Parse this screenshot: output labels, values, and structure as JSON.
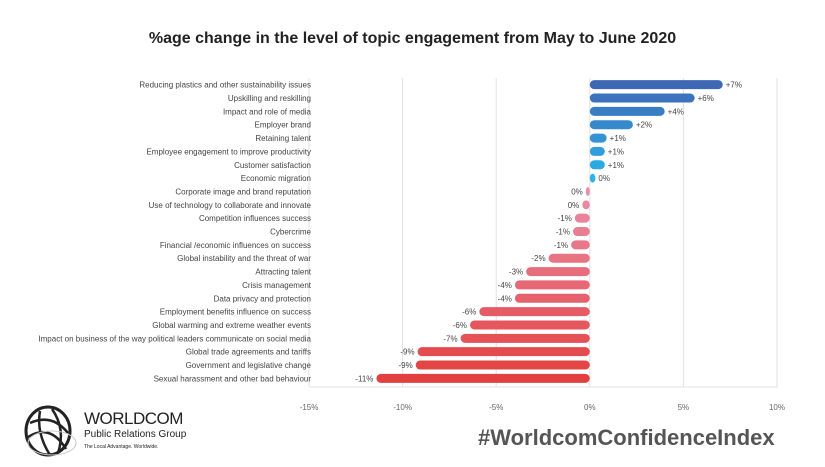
{
  "chart_data": {
    "type": "bar",
    "orientation": "horizontal",
    "title": "%age change in the level of topic engagement from May to June 2020",
    "xlim": [
      -15,
      10
    ],
    "xticks": [
      "-15%",
      "-10%",
      "-5%",
      "0%",
      "5%",
      "10%"
    ],
    "xtick_values": [
      -15,
      -10,
      -5,
      0,
      5,
      10
    ],
    "grid": "vertical",
    "categories": [
      "Reducing plastics and other sustainability issues",
      "Upskilling and reskilling",
      "Impact and role of media",
      "Employer brand",
      "Retaining talent",
      "Employee engagement to improve productivity",
      "Customer satisfaction",
      "Economic migration",
      "Corporate image and brand reputation",
      "Use of technology to collaborate and innovate",
      "Competition influences success",
      "Cybercrime",
      "Financial /economic influences on success",
      "Global instability and the threat of war",
      "Attracting talent",
      "Crisis management",
      "Data privacy and protection",
      "Employment benefits influence on success",
      "Global warming and extreme weather events",
      "Impact on business of the way political leaders communicate on social media",
      "Global trade agreements and tariffs",
      "Government and legislative change",
      "Sexual harassment and other bad behaviour"
    ],
    "values": [
      7.1,
      5.6,
      4.0,
      2.3,
      0.9,
      0.8,
      0.8,
      0.3,
      -0.2,
      -0.4,
      -0.8,
      -0.9,
      -1.0,
      -2.2,
      -3.4,
      -4.0,
      -4.0,
      -5.9,
      -6.4,
      -6.9,
      -9.2,
      -9.3,
      -11.4
    ],
    "labels": [
      "+7%",
      "+6%",
      "+4%",
      "+2%",
      "+1%",
      "+1%",
      "+1%",
      "0%",
      "0%",
      "0%",
      "-1%",
      "-1%",
      "-1%",
      "-2%",
      "-3%",
      "-4%",
      "-4%",
      "-6%",
      "-6%",
      "-7%",
      "-9%",
      "-9%",
      "-11%"
    ],
    "colors": {
      "positive_dark": "#3f68b4",
      "positive_light": "#2ab4ea",
      "negative_light": "#e98fa8",
      "negative_dark": "#e2403f"
    }
  },
  "footer": {
    "hashtag": "#WorldcomConfidenceIndex",
    "logo_name": "WORLDCOM",
    "logo_sub": "Public Relations Group",
    "logo_tagline": "The Local Advantage. Worldwide."
  }
}
